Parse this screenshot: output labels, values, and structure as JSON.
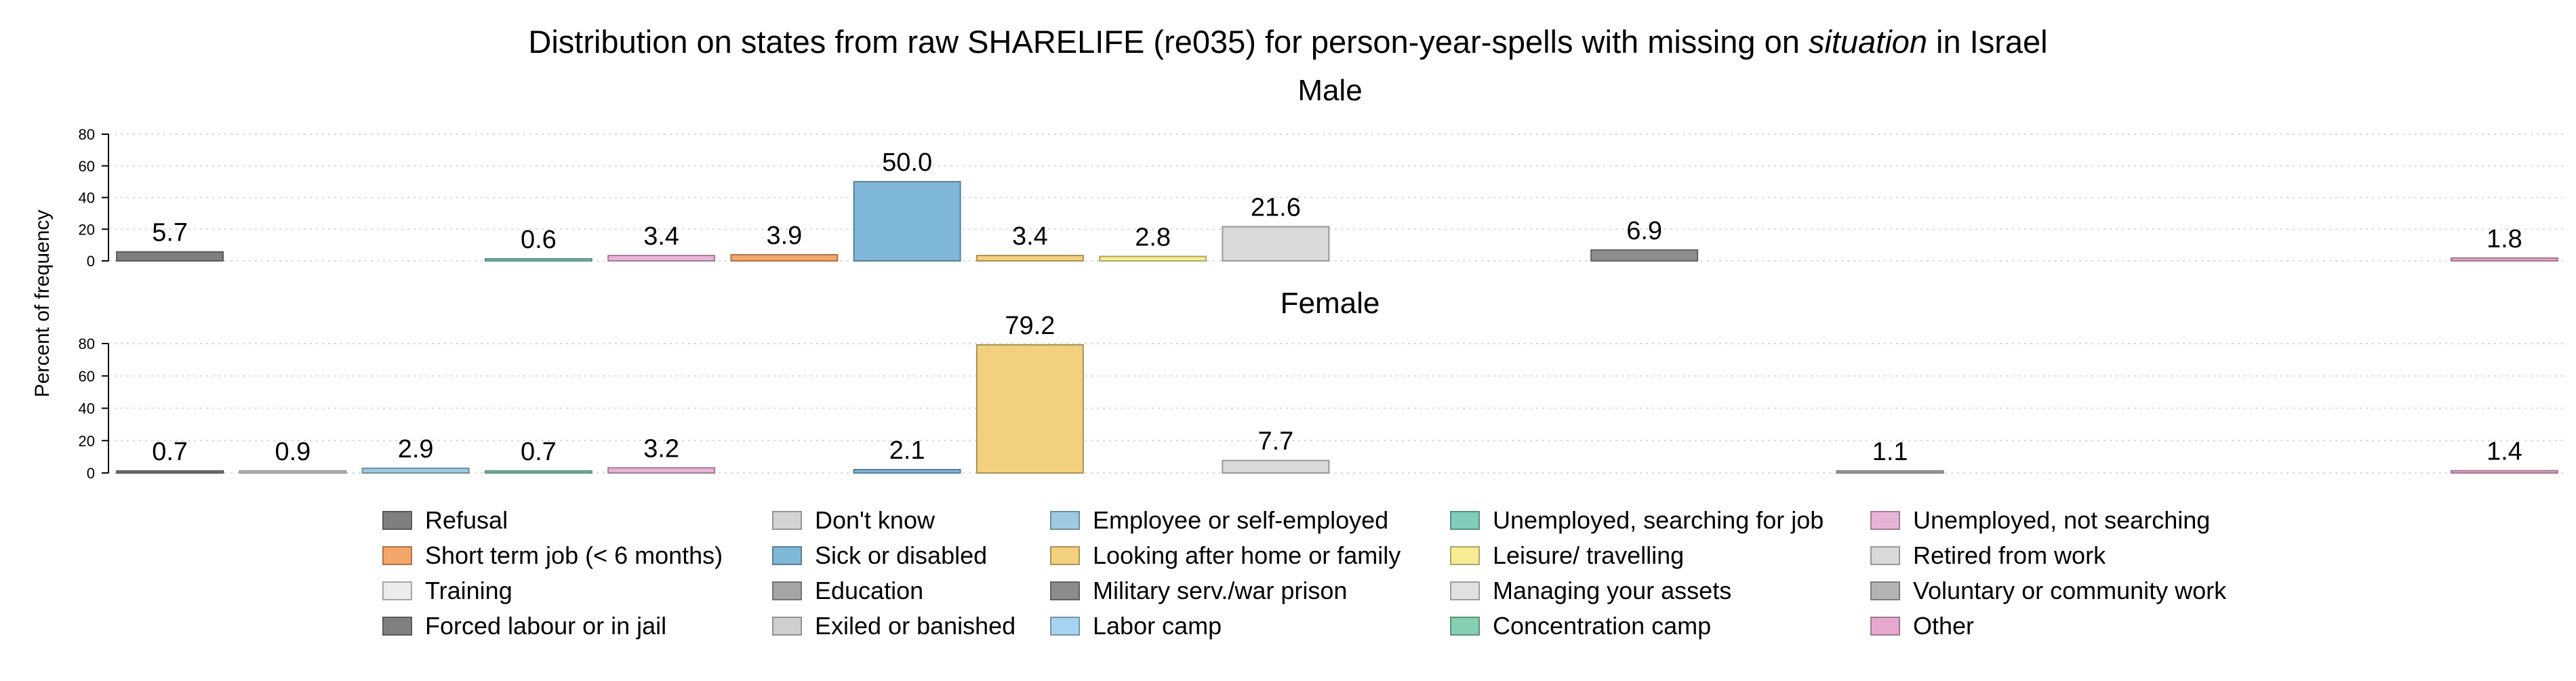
{
  "chart_data": {
    "type": "bar",
    "title_parts": [
      "Distribution on states from raw SHARELIFE (re035) for person-year-spells with missing on ",
      "situation",
      " in Israel"
    ],
    "ylabel": "Percent of frequency",
    "ylim": [
      0,
      80
    ],
    "yticks": [
      "0",
      "20",
      "40",
      "60",
      "80"
    ],
    "grid": true,
    "legend_position": "bottom",
    "categories": [
      "Refusal",
      "Don't know",
      "Employee or self-employed",
      "Unemployed, searching for job",
      "Unemployed, not searching",
      "Short term job (< 6 months)",
      "Sick or disabled",
      "Looking after home or family",
      "Leisure/ travelling",
      "Retired from work",
      "Training",
      "Education",
      "Military serv./war prison",
      "Managing your assets",
      "Voluntary or community work",
      "Forced labour or in jail",
      "Exiled or banished",
      "Labor camp",
      "Concentration camp",
      "Other"
    ],
    "colors": [
      "#7f7f7f",
      "#d3d3d3",
      "#9ecae1",
      "#7fcdbb",
      "#e7b3d6",
      "#f4a66a",
      "#7fb7d9",
      "#f3d07e",
      "#f7ec93",
      "#d9d9d9",
      "#ececec",
      "#a5a5a5",
      "#8c8c8c",
      "#e1e1e1",
      "#b3b3b3",
      "#808080",
      "#cfcfcf",
      "#a6d4f0",
      "#86cfb1",
      "#e7a8d0"
    ],
    "panels": [
      {
        "name": "Male",
        "values": [
          5.7,
          null,
          null,
          0.6,
          3.4,
          3.9,
          50.0,
          3.4,
          2.8,
          21.6,
          null,
          null,
          6.9,
          null,
          null,
          null,
          null,
          null,
          null,
          1.8
        ],
        "labels": [
          "5.7",
          "",
          "",
          "0.6",
          "3.4",
          "3.9",
          "50.0",
          "3.4",
          "2.8",
          "21.6",
          "",
          "",
          "6.9",
          "",
          "",
          "",
          "",
          "",
          "",
          "1.8"
        ]
      },
      {
        "name": "Female",
        "values": [
          0.7,
          0.9,
          2.9,
          0.7,
          3.2,
          null,
          2.1,
          79.2,
          null,
          7.7,
          null,
          null,
          null,
          null,
          1.1,
          null,
          null,
          null,
          null,
          1.4
        ],
        "labels": [
          "0.7",
          "0.9",
          "2.9",
          "0.7",
          "3.2",
          "",
          "2.1",
          "79.2",
          "",
          "7.7",
          "",
          "",
          "",
          "",
          "1.1",
          "",
          "",
          "",
          "",
          "1.4"
        ]
      }
    ],
    "legend": [
      [
        "Refusal",
        "Don't know",
        "Employee or self-employed",
        "Unemployed, searching for job",
        "Unemployed, not searching"
      ],
      [
        "Short term job (< 6 months)",
        "Sick or disabled",
        "Looking after home or family",
        "Leisure/ travelling",
        "Retired from work"
      ],
      [
        "Training",
        "Education",
        "Military serv./war prison",
        "Managing your assets",
        "Voluntary or community work"
      ],
      [
        "Forced labour or in jail",
        "Exiled or banished",
        "Labor camp",
        "Concentration camp",
        "Other"
      ]
    ]
  }
}
